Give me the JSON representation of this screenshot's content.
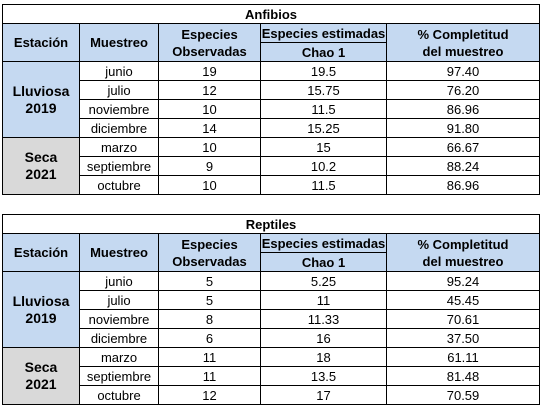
{
  "tables": [
    {
      "title": "Anfibios",
      "headers": {
        "estacion": "Estación",
        "muestreo": "Muestreo",
        "especies_obs_1": "Especies",
        "especies_obs_2": "Observadas",
        "especies_est": "Especies estimadas",
        "chao": "Chao 1",
        "completitud_1": "% Completitud",
        "completitud_2": "del muestreo"
      },
      "groups": [
        {
          "label_1": "Lluviosa",
          "label_2": "2019",
          "color": "#c5d9f1"
        },
        {
          "label_1": "Seca",
          "label_2": "2021",
          "color": "#d9d9d9"
        }
      ],
      "rows": [
        {
          "muestreo": "junio",
          "observadas": "19",
          "chao1": "19.5",
          "completitud": "97.40"
        },
        {
          "muestreo": "julio",
          "observadas": "12",
          "chao1": "15.75",
          "completitud": "76.20"
        },
        {
          "muestreo": "noviembre",
          "observadas": "10",
          "chao1": "11.5",
          "completitud": "86.96"
        },
        {
          "muestreo": "diciembre",
          "observadas": "14",
          "chao1": "15.25",
          "completitud": "91.80"
        },
        {
          "muestreo": "marzo",
          "observadas": "10",
          "chao1": "15",
          "completitud": "66.67"
        },
        {
          "muestreo": "septiembre",
          "observadas": "9",
          "chao1": "10.2",
          "completitud": "88.24"
        },
        {
          "muestreo": "octubre",
          "observadas": "10",
          "chao1": "11.5",
          "completitud": "86.96"
        }
      ]
    },
    {
      "title": "Reptiles",
      "headers": {
        "estacion": "Estación",
        "muestreo": "Muestreo",
        "especies_obs_1": "Especies",
        "especies_obs_2": "Observadas",
        "especies_est": "Especies estimadas",
        "chao": "Chao 1",
        "completitud_1": "% Completitud",
        "completitud_2": "del muestreo"
      },
      "groups": [
        {
          "label_1": "Lluviosa",
          "label_2": "2019",
          "color": "#c5d9f1"
        },
        {
          "label_1": "Seca",
          "label_2": "2021",
          "color": "#d9d9d9"
        }
      ],
      "rows": [
        {
          "muestreo": "junio",
          "observadas": "5",
          "chao1": "5.25",
          "completitud": "95.24"
        },
        {
          "muestreo": "julio",
          "observadas": "5",
          "chao1": "11",
          "completitud": "45.45"
        },
        {
          "muestreo": "noviembre",
          "observadas": "8",
          "chao1": "11.33",
          "completitud": "70.61"
        },
        {
          "muestreo": "diciembre",
          "observadas": "6",
          "chao1": "16",
          "completitud": "37.50"
        },
        {
          "muestreo": "marzo",
          "observadas": "11",
          "chao1": "18",
          "completitud": "61.11"
        },
        {
          "muestreo": "septiembre",
          "observadas": "11",
          "chao1": "13.5",
          "completitud": "81.48"
        },
        {
          "muestreo": "octubre",
          "observadas": "12",
          "chao1": "17",
          "completitud": "70.59"
        }
      ]
    }
  ]
}
